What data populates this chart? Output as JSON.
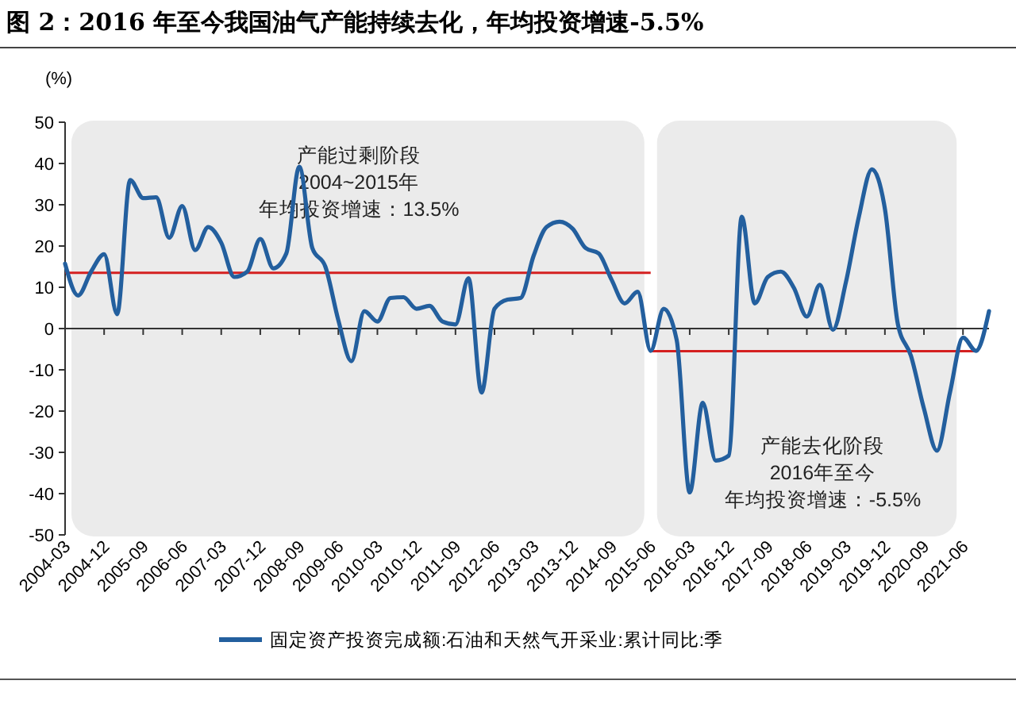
{
  "chart_data": {
    "type": "line",
    "title": "图 2：2016 年至今我国油气产能持续去化，年均投资增速-5.5%",
    "ylabel": "(%)",
    "categories": [
      "2004-03",
      null,
      null,
      "2004-12",
      null,
      null,
      "2005-09",
      null,
      null,
      "2006-06",
      null,
      null,
      "2007-03",
      null,
      null,
      "2007-12",
      null,
      null,
      "2008-09",
      null,
      null,
      "2009-06",
      null,
      null,
      "2010-03",
      null,
      null,
      "2010-12",
      null,
      null,
      "2011-09",
      null,
      null,
      "2012-06",
      null,
      null,
      "2013-03",
      null,
      null,
      "2013-12",
      null,
      null,
      "2014-09",
      null,
      null,
      "2015-06",
      null,
      null,
      "2016-03",
      null,
      null,
      "2016-12",
      null,
      null,
      "2017-09",
      null,
      null,
      "2018-06",
      null,
      null,
      "2019-03",
      null,
      null,
      "2019-12",
      null,
      null,
      "2020-09",
      null,
      null,
      "2021-06",
      null,
      null
    ],
    "series": [
      {
        "name": "固定资产投资完成额:石油和天然气开采业:累计同比:季",
        "color": "#235f9e",
        "values": [
          15.7,
          8,
          13.8,
          18,
          3.5,
          36,
          31.6,
          31.8,
          22,
          29.7,
          19,
          24.6,
          20.8,
          12.5,
          13.8,
          21.7,
          14.6,
          18.2,
          39.2,
          19.5,
          15,
          2,
          -7.9,
          4.2,
          1.7,
          7.4,
          7.6,
          4.8,
          5.5,
          1.7,
          1,
          12.2,
          -15.5,
          4.8,
          7,
          7.4,
          17.6,
          24.6,
          25.9,
          24.2,
          19.5,
          18.2,
          11.8,
          6.1,
          8.9,
          -5.4,
          4.8,
          -2.8,
          -39.7,
          -18,
          -32,
          -30.8,
          27.1,
          6.1,
          12.5,
          13.8,
          9.9,
          2.9,
          10.6,
          -0.3,
          11.2,
          27.1,
          38.6,
          29,
          1,
          -6.6,
          -19.4,
          -29.6,
          -15.5,
          -2.2,
          -5.4,
          4.2
        ]
      }
    ],
    "ref_lines": [
      {
        "axis": "y",
        "value": 13.5,
        "color": "#d42020"
      },
      {
        "axis": "y",
        "value": -5.5,
        "color": "#d42020"
      }
    ],
    "bands": [
      {
        "axis": "x",
        "from": "2004-03",
        "to": "2015-06",
        "color": "#ebebeb"
      },
      {
        "axis": "x",
        "from": "2015-06",
        "to": "2021-06",
        "color": "#ebebeb"
      }
    ],
    "annotations": [
      "产能过剩阶段",
      "2004~2015年",
      "年均投资增速：13.5%",
      "产能去化阶段",
      "2016年至今",
      "年均投资增速：-5.5%"
    ],
    "ylim": [
      -50,
      50
    ],
    "yticks": [
      -50,
      -40,
      -30,
      -20,
      -10,
      0,
      10,
      20,
      30,
      40,
      50
    ],
    "legend": "bottom",
    "marker": "none",
    "line_style": "solid"
  }
}
